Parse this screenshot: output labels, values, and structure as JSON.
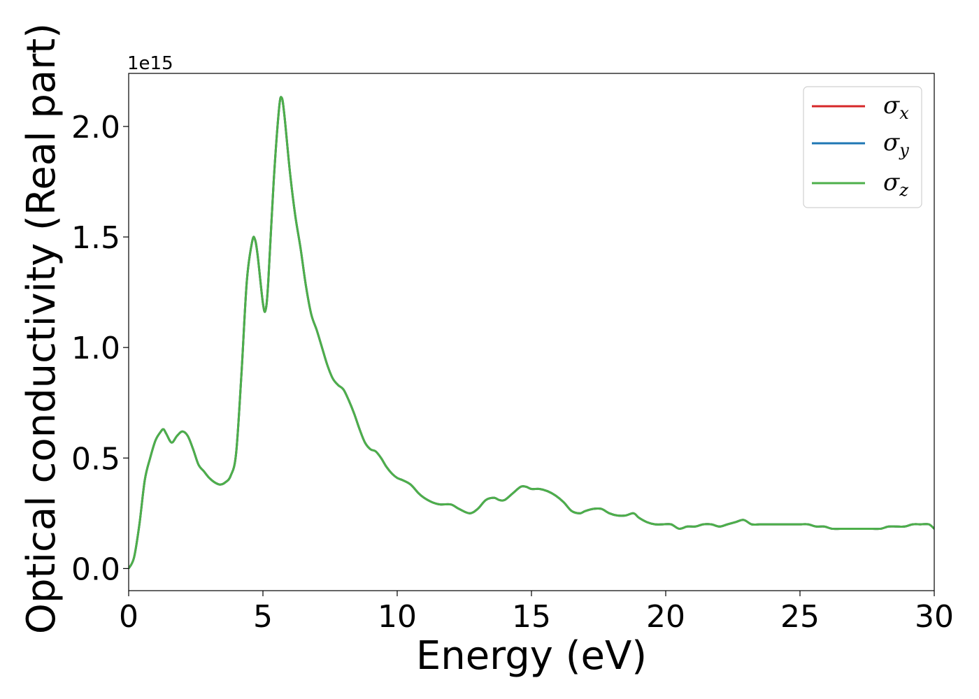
{
  "chart_data": {
    "type": "line",
    "title": "",
    "xlabel": "Energy (eV)",
    "ylabel": "Optical conductivity (Real part)",
    "y_offset_text": "1e15",
    "xlim": [
      0,
      30
    ],
    "ylim": [
      -0.1,
      2.24
    ],
    "x_ticks": [
      0,
      5,
      10,
      15,
      20,
      25,
      30
    ],
    "x_tick_labels": [
      "0",
      "5",
      "10",
      "15",
      "20",
      "25",
      "30"
    ],
    "y_ticks": [
      0.0,
      0.5,
      1.0,
      1.5,
      2.0
    ],
    "y_tick_labels": [
      "0.0",
      "0.5",
      "1.0",
      "1.5",
      "2.0"
    ],
    "grid": false,
    "legend_position": "top-right",
    "x": [
      0,
      0.2,
      0.4,
      0.6,
      0.8,
      1.0,
      1.2,
      1.3,
      1.4,
      1.6,
      1.8,
      2.0,
      2.2,
      2.4,
      2.6,
      2.8,
      3.0,
      3.2,
      3.4,
      3.6,
      3.8,
      4.0,
      4.2,
      4.4,
      4.6,
      4.7,
      4.8,
      5.0,
      5.1,
      5.2,
      5.4,
      5.6,
      5.7,
      5.8,
      6.0,
      6.2,
      6.4,
      6.6,
      6.8,
      7.0,
      7.2,
      7.4,
      7.6,
      7.8,
      8.0,
      8.2,
      8.4,
      8.6,
      8.8,
      9.0,
      9.2,
      9.4,
      9.6,
      9.8,
      10.0,
      10.2,
      10.5,
      10.8,
      11.0,
      11.3,
      11.6,
      12.0,
      12.3,
      12.7,
      13.0,
      13.3,
      13.6,
      13.8,
      14.0,
      14.3,
      14.6,
      14.8,
      15.0,
      15.3,
      15.6,
      15.9,
      16.2,
      16.5,
      16.8,
      17.0,
      17.3,
      17.6,
      17.9,
      18.2,
      18.5,
      18.8,
      19.0,
      19.3,
      19.6,
      19.9,
      20.2,
      20.5,
      20.8,
      21.1,
      21.4,
      21.7,
      22.0,
      22.3,
      22.6,
      22.9,
      23.2,
      23.5,
      23.8,
      24.1,
      24.4,
      24.7,
      25.0,
      25.3,
      25.6,
      25.9,
      26.2,
      26.5,
      26.8,
      27.1,
      27.4,
      27.7,
      28.0,
      28.3,
      28.6,
      28.9,
      29.2,
      29.5,
      29.8,
      30.0
    ],
    "series": [
      {
        "name": "σ_x",
        "symbol": "σ",
        "subscript": "x",
        "color": "#d62728",
        "values": [
          0.0,
          0.05,
          0.2,
          0.4,
          0.5,
          0.58,
          0.62,
          0.63,
          0.61,
          0.57,
          0.6,
          0.62,
          0.6,
          0.54,
          0.47,
          0.44,
          0.41,
          0.39,
          0.38,
          0.39,
          0.42,
          0.52,
          0.88,
          1.3,
          1.48,
          1.49,
          1.42,
          1.2,
          1.17,
          1.3,
          1.75,
          2.08,
          2.13,
          2.05,
          1.8,
          1.6,
          1.45,
          1.28,
          1.15,
          1.08,
          1.0,
          0.92,
          0.86,
          0.83,
          0.81,
          0.76,
          0.7,
          0.63,
          0.57,
          0.54,
          0.53,
          0.5,
          0.46,
          0.43,
          0.41,
          0.4,
          0.38,
          0.34,
          0.32,
          0.3,
          0.29,
          0.29,
          0.27,
          0.25,
          0.27,
          0.31,
          0.32,
          0.31,
          0.31,
          0.34,
          0.37,
          0.37,
          0.36,
          0.36,
          0.35,
          0.33,
          0.3,
          0.26,
          0.25,
          0.26,
          0.27,
          0.27,
          0.25,
          0.24,
          0.24,
          0.25,
          0.23,
          0.21,
          0.2,
          0.2,
          0.2,
          0.18,
          0.19,
          0.19,
          0.2,
          0.2,
          0.19,
          0.2,
          0.21,
          0.22,
          0.2,
          0.2,
          0.2,
          0.2,
          0.2,
          0.2,
          0.2,
          0.2,
          0.19,
          0.19,
          0.18,
          0.18,
          0.18,
          0.18,
          0.18,
          0.18,
          0.18,
          0.19,
          0.19,
          0.19,
          0.2,
          0.2,
          0.2,
          0.18
        ]
      },
      {
        "name": "σ_y",
        "symbol": "σ",
        "subscript": "y",
        "color": "#1f77b4",
        "values": [
          0.0,
          0.05,
          0.2,
          0.4,
          0.5,
          0.58,
          0.62,
          0.63,
          0.61,
          0.57,
          0.6,
          0.62,
          0.6,
          0.54,
          0.47,
          0.44,
          0.41,
          0.39,
          0.38,
          0.39,
          0.42,
          0.52,
          0.88,
          1.3,
          1.48,
          1.49,
          1.42,
          1.2,
          1.17,
          1.3,
          1.75,
          2.08,
          2.13,
          2.05,
          1.8,
          1.6,
          1.45,
          1.28,
          1.15,
          1.08,
          1.0,
          0.92,
          0.86,
          0.83,
          0.81,
          0.76,
          0.7,
          0.63,
          0.57,
          0.54,
          0.53,
          0.5,
          0.46,
          0.43,
          0.41,
          0.4,
          0.38,
          0.34,
          0.32,
          0.3,
          0.29,
          0.29,
          0.27,
          0.25,
          0.27,
          0.31,
          0.32,
          0.31,
          0.31,
          0.34,
          0.37,
          0.37,
          0.36,
          0.36,
          0.35,
          0.33,
          0.3,
          0.26,
          0.25,
          0.26,
          0.27,
          0.27,
          0.25,
          0.24,
          0.24,
          0.25,
          0.23,
          0.21,
          0.2,
          0.2,
          0.2,
          0.18,
          0.19,
          0.19,
          0.2,
          0.2,
          0.19,
          0.2,
          0.21,
          0.22,
          0.2,
          0.2,
          0.2,
          0.2,
          0.2,
          0.2,
          0.2,
          0.2,
          0.19,
          0.19,
          0.18,
          0.18,
          0.18,
          0.18,
          0.18,
          0.18,
          0.18,
          0.19,
          0.19,
          0.19,
          0.2,
          0.2,
          0.2,
          0.18
        ]
      },
      {
        "name": "σ_z",
        "symbol": "σ",
        "subscript": "z",
        "color": "#4daf4a",
        "values": [
          0.0,
          0.05,
          0.2,
          0.4,
          0.5,
          0.58,
          0.62,
          0.63,
          0.61,
          0.57,
          0.6,
          0.62,
          0.6,
          0.54,
          0.47,
          0.44,
          0.41,
          0.39,
          0.38,
          0.39,
          0.42,
          0.52,
          0.88,
          1.3,
          1.48,
          1.49,
          1.42,
          1.2,
          1.17,
          1.3,
          1.75,
          2.08,
          2.13,
          2.05,
          1.8,
          1.6,
          1.45,
          1.28,
          1.15,
          1.08,
          1.0,
          0.92,
          0.86,
          0.83,
          0.81,
          0.76,
          0.7,
          0.63,
          0.57,
          0.54,
          0.53,
          0.5,
          0.46,
          0.43,
          0.41,
          0.4,
          0.38,
          0.34,
          0.32,
          0.3,
          0.29,
          0.29,
          0.27,
          0.25,
          0.27,
          0.31,
          0.32,
          0.31,
          0.31,
          0.34,
          0.37,
          0.37,
          0.36,
          0.36,
          0.35,
          0.33,
          0.3,
          0.26,
          0.25,
          0.26,
          0.27,
          0.27,
          0.25,
          0.24,
          0.24,
          0.25,
          0.23,
          0.21,
          0.2,
          0.2,
          0.2,
          0.18,
          0.19,
          0.19,
          0.2,
          0.2,
          0.19,
          0.2,
          0.21,
          0.22,
          0.2,
          0.2,
          0.2,
          0.2,
          0.2,
          0.2,
          0.2,
          0.2,
          0.19,
          0.19,
          0.18,
          0.18,
          0.18,
          0.18,
          0.18,
          0.18,
          0.18,
          0.19,
          0.19,
          0.19,
          0.2,
          0.2,
          0.2,
          0.18
        ]
      }
    ]
  }
}
